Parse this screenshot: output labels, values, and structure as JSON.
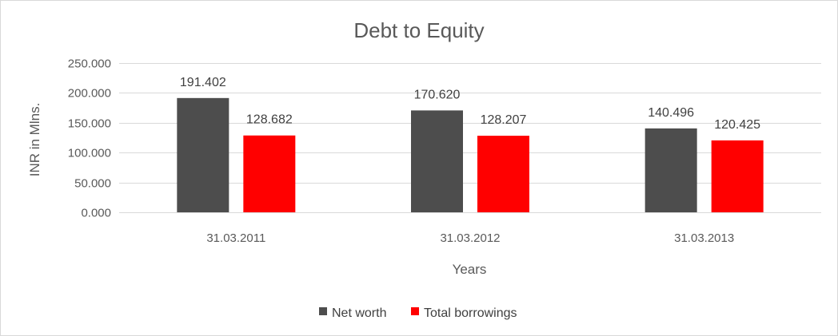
{
  "chart_data": {
    "type": "bar",
    "title": "Debt to Equity",
    "xlabel": "Years",
    "ylabel": "INR in Mlns.",
    "categories": [
      "31.03.2011",
      "31.03.2012",
      "31.03.2013"
    ],
    "series": [
      {
        "name": "Net worth",
        "color": "#4d4d4d",
        "values": [
          191.402,
          170.62,
          140.496
        ],
        "labels": [
          "191.402",
          "170.620",
          "140.496"
        ]
      },
      {
        "name": "Total borrowings",
        "color": "#ff0000",
        "values": [
          128.682,
          128.207,
          120.425
        ],
        "labels": [
          "128.682",
          "128.207",
          "120.425"
        ]
      }
    ],
    "ylim": [
      0,
      250
    ],
    "yticks": [
      0,
      50,
      100,
      150,
      200,
      250
    ],
    "ytick_labels": [
      "0.000",
      "50.000",
      "100.000",
      "150.000",
      "200.000",
      "250.000"
    ],
    "grid": true,
    "legend_position": "bottom"
  }
}
